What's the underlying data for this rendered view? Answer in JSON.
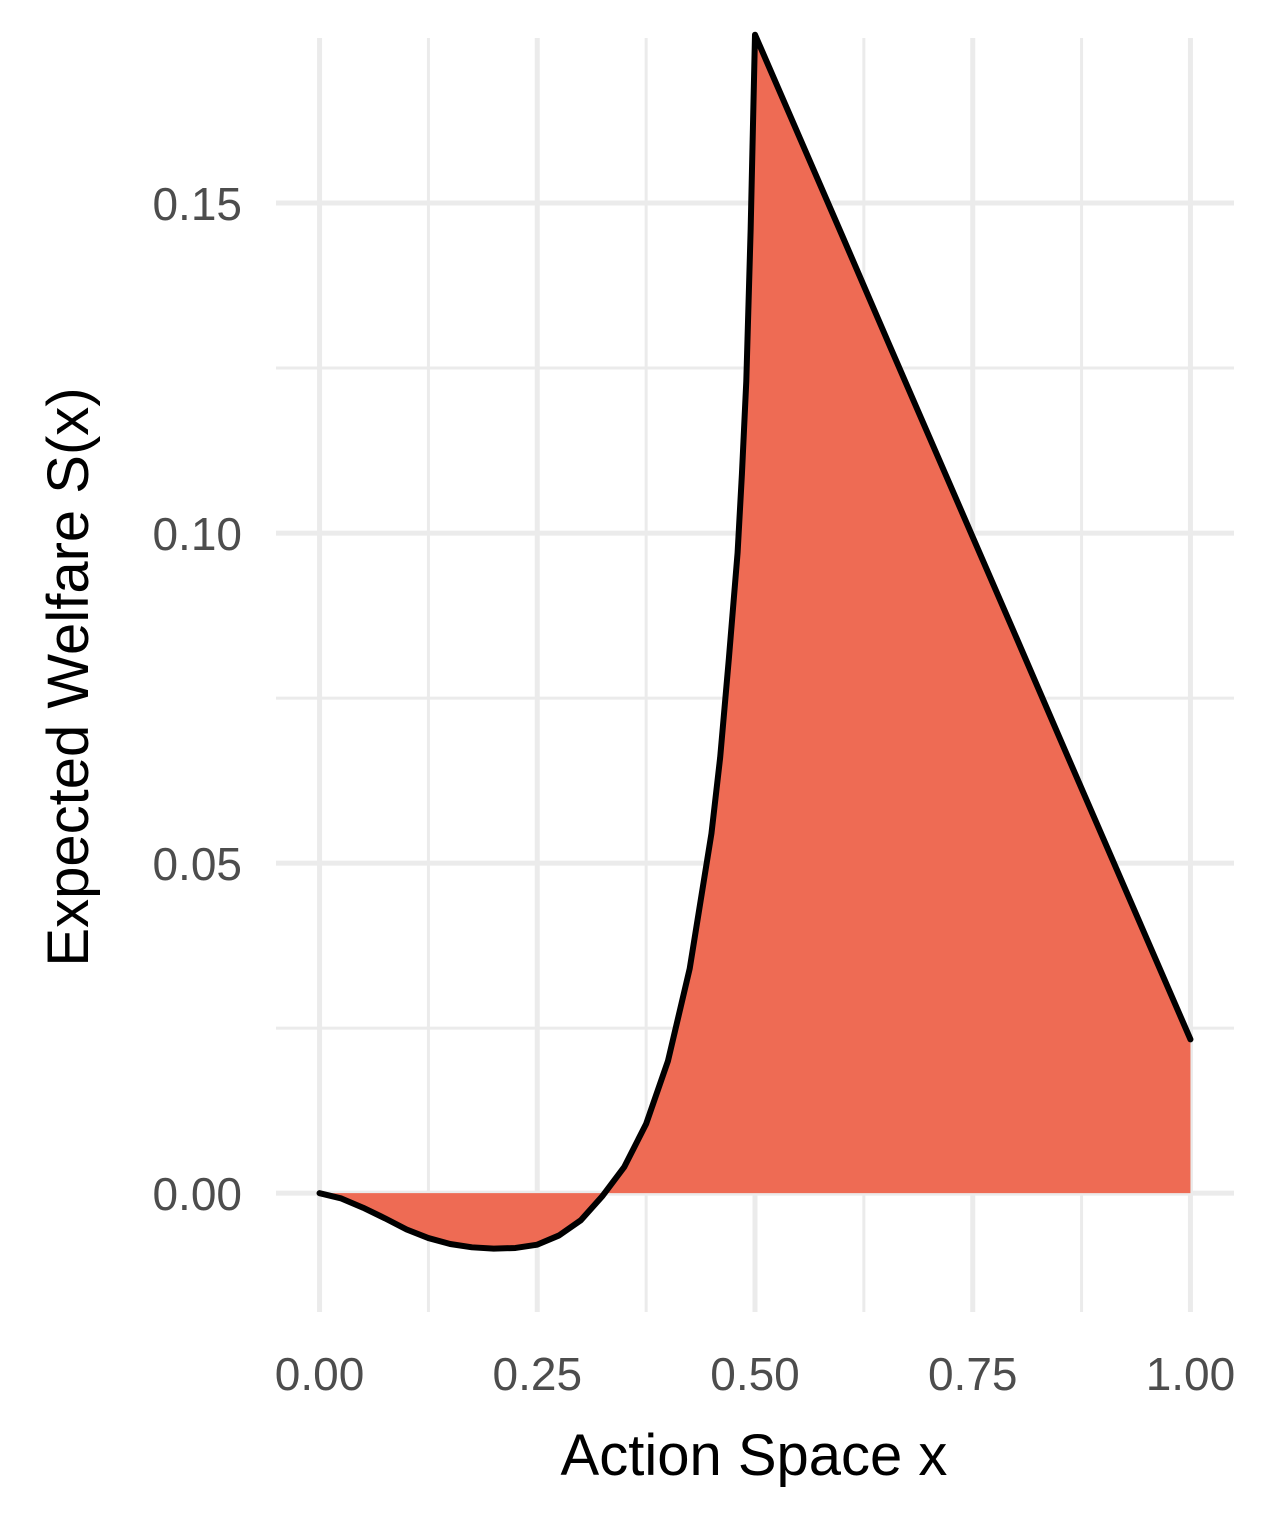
{
  "chart_data": {
    "type": "area",
    "title": "",
    "xlabel": "Action Space x",
    "ylabel": "Expected Welfare S(x)",
    "xlim": [
      -0.05,
      1.05
    ],
    "ylim": [
      -0.018,
      0.175
    ],
    "x_ticks": [
      0.0,
      0.25,
      0.5,
      0.75,
      1.0
    ],
    "x_tick_labels": [
      "0.00",
      "0.25",
      "0.50",
      "0.75",
      "1.00"
    ],
    "x_minor_ticks": [
      0.125,
      0.375,
      0.625,
      0.875
    ],
    "y_ticks": [
      0.0,
      0.05,
      0.1,
      0.15
    ],
    "y_tick_labels": [
      "0.00",
      "0.05",
      "0.10",
      "0.15"
    ],
    "y_minor_ticks": [
      0.025,
      0.075,
      0.125
    ],
    "grid": true,
    "colors": {
      "fill": "#ee6b54",
      "line": "#000000",
      "grid": "#ebebeb"
    },
    "series": [
      {
        "x": [
          0.0,
          0.025,
          0.05,
          0.075,
          0.1,
          0.125,
          0.15,
          0.175,
          0.2,
          0.225,
          0.25,
          0.275,
          0.3,
          0.325,
          0.35,
          0.375,
          0.4,
          0.425,
          0.45,
          0.46,
          0.47,
          0.48,
          0.485,
          0.49,
          0.495,
          0.5,
          0.55,
          0.6,
          0.65,
          0.7,
          0.75,
          0.8,
          0.85,
          0.9,
          0.95,
          1.0
        ],
        "y": [
          0.0,
          -0.0008,
          -0.0022,
          -0.0038,
          -0.0055,
          -0.0068,
          -0.0077,
          -0.0082,
          -0.0084,
          -0.0083,
          -0.0078,
          -0.0064,
          -0.0041,
          -0.0004,
          0.004,
          0.0105,
          0.02,
          0.034,
          0.0545,
          0.066,
          0.081,
          0.097,
          0.109,
          0.123,
          0.146,
          0.1755,
          0.1603,
          0.1451,
          0.1298,
          0.1146,
          0.0994,
          0.0842,
          0.0689,
          0.0537,
          0.0385,
          0.0233
        ]
      }
    ]
  }
}
